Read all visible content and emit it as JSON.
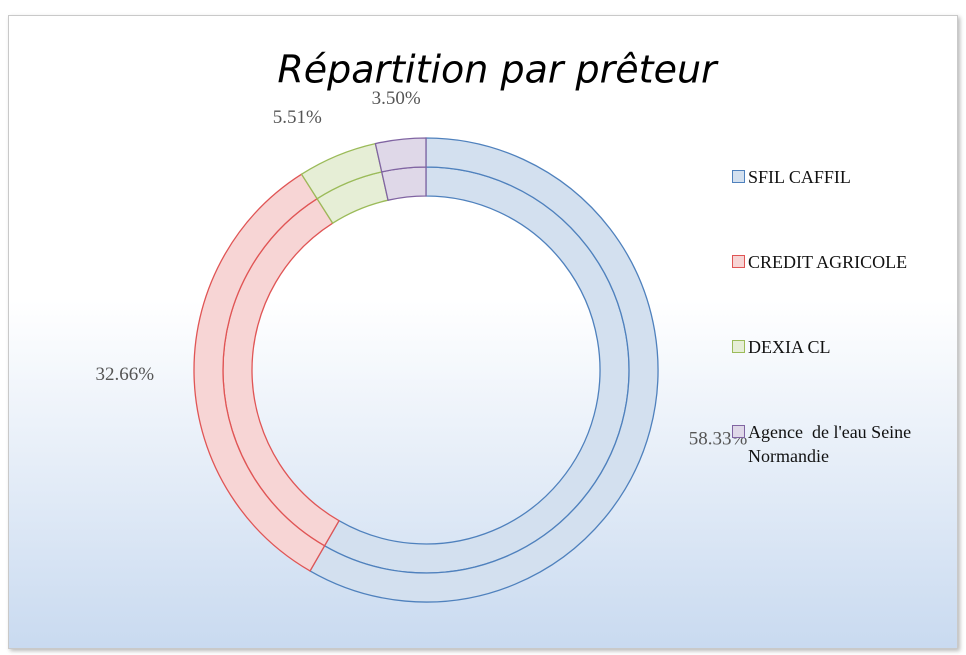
{
  "chart_data": {
    "type": "doughnut",
    "title": "Répartition par prêteur",
    "categories": [
      "SFIL CAFFIL",
      "CREDIT AGRICOLE",
      "DEXIA CL",
      "Agence  de l'eau Seine Normandie"
    ],
    "values": [
      58.33,
      32.66,
      5.51,
      3.5
    ],
    "value_labels": [
      "58.33%",
      "32.66%",
      "5.51%",
      "3.50%"
    ],
    "colors": [
      "#4f81bd",
      "#e05555",
      "#9bbb59",
      "#8064a2"
    ],
    "legend": "right"
  }
}
